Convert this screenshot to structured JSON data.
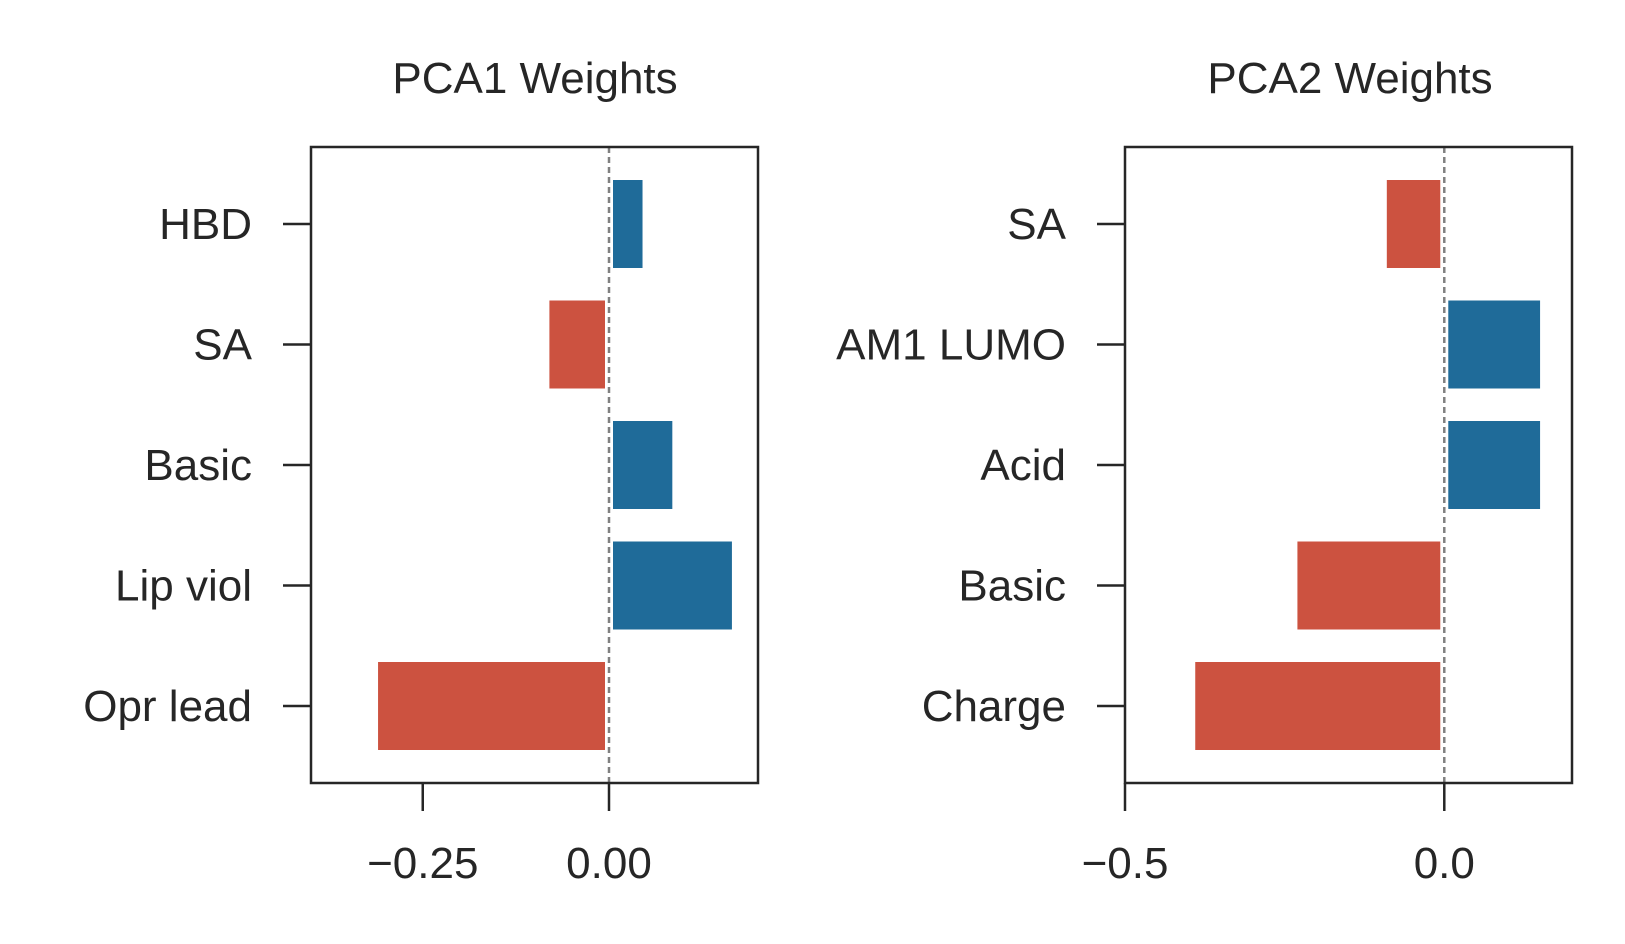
{
  "chart_data": [
    {
      "type": "bar",
      "orientation": "horizontal",
      "title": "PCA1 Weights",
      "categories": [
        "HBD",
        "SA",
        "Basic",
        "Lip viol",
        "Opr lead"
      ],
      "values": [
        0.045,
        -0.08,
        0.085,
        0.165,
        -0.31
      ],
      "xlim": [
        -0.4,
        0.2
      ],
      "xticks": [
        -0.25,
        0.0
      ],
      "xtick_labels": [
        "−0.25",
        "0.00"
      ],
      "reference_line": 0,
      "grid": false,
      "positive_color": "#1f6b99",
      "negative_color": "#cc5240"
    },
    {
      "type": "bar",
      "orientation": "horizontal",
      "title": "PCA2 Weights",
      "categories": [
        "SA",
        "AM1 LUMO",
        "Acid",
        "Basic",
        "Charge"
      ],
      "values": [
        -0.09,
        0.15,
        0.15,
        -0.23,
        -0.39
      ],
      "xlim": [
        -0.5,
        0.2
      ],
      "xticks": [
        -0.5,
        0.0
      ],
      "xtick_labels": [
        "−0.5",
        "0.0"
      ],
      "reference_line": 0,
      "grid": false,
      "positive_color": "#1f6b99",
      "negative_color": "#cc5240"
    }
  ]
}
